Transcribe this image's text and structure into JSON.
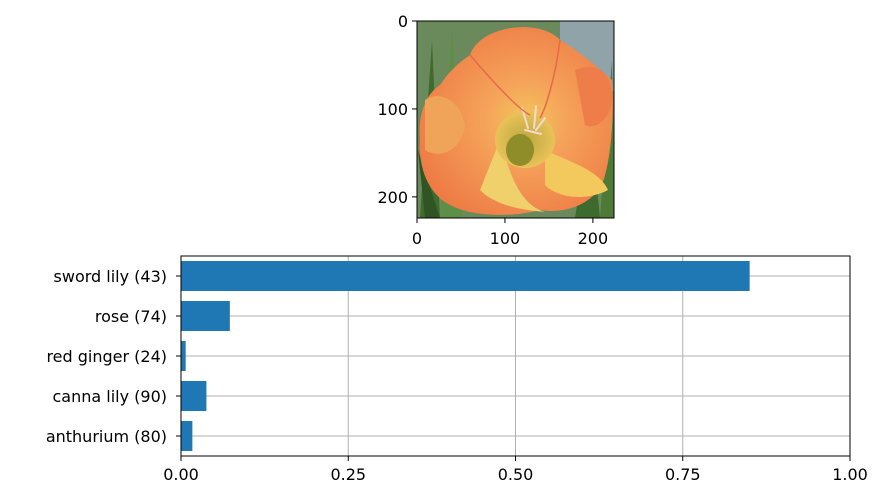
{
  "chart_data": [
    {
      "type": "image",
      "xlim": [
        0,
        224
      ],
      "ylim": [
        224,
        0
      ],
      "x_ticks": [
        "0",
        "100",
        "200"
      ],
      "y_ticks": [
        "0",
        "100",
        "200"
      ],
      "image_subject": "orange-flower-photo"
    },
    {
      "type": "bar",
      "orientation": "horizontal",
      "categories": [
        "sword lily (43)",
        "rose (74)",
        "red ginger (24)",
        "canna lily (90)",
        "anthurium (80)"
      ],
      "values": [
        0.85,
        0.073,
        0.007,
        0.038,
        0.017
      ],
      "xlim": [
        0,
        1
      ],
      "x_ticks": [
        "0.00",
        "0.25",
        "0.50",
        "0.75",
        "1.00"
      ],
      "grid": true,
      "colors": {
        "bar": "#1f77b4",
        "grid": "#b0b0b0"
      }
    }
  ]
}
